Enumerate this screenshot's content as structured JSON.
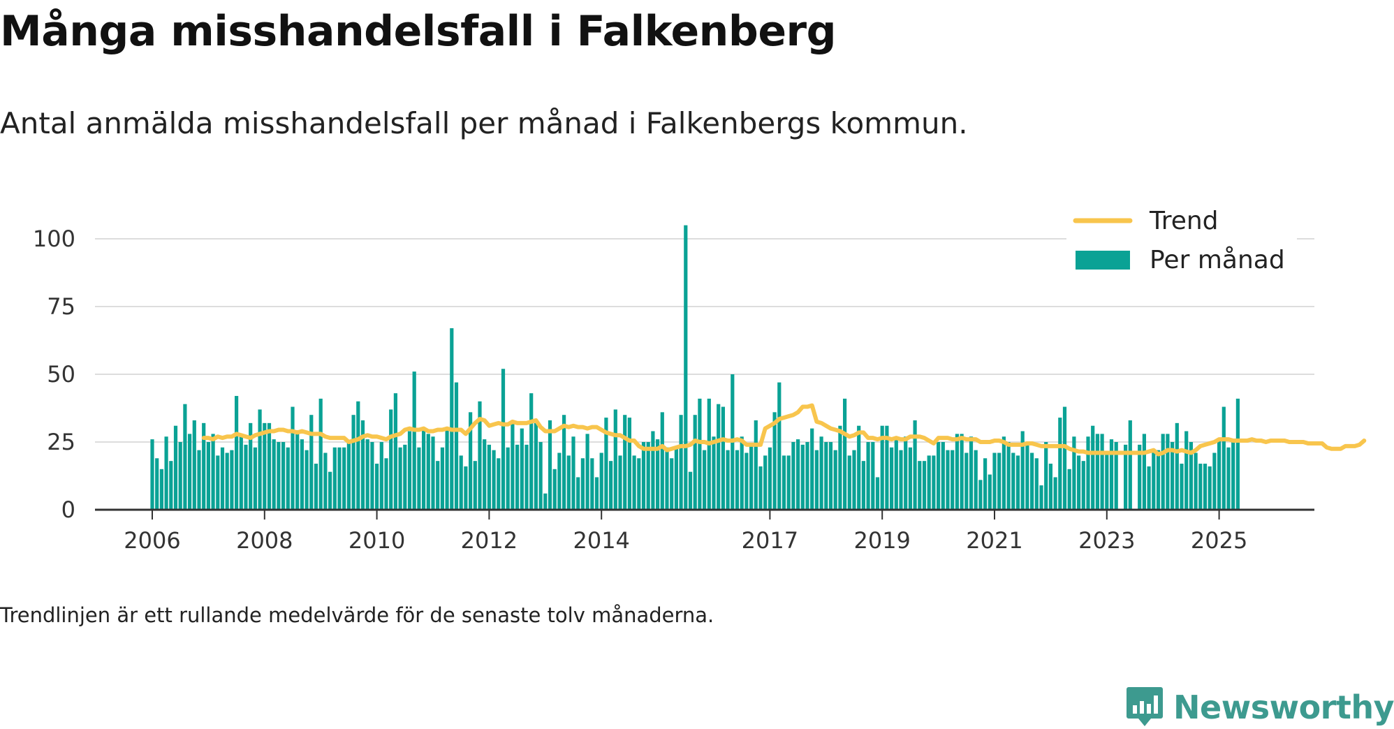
{
  "title": "Många misshandelsfall i Falkenberg",
  "subtitle": "Antal anmälda misshandelsfall per månad i Falkenbergs kommun.",
  "footnote": "Trendlinjen är ett rullande medelvärde för de senaste tolv månaderna.",
  "brand": "Newsworthy",
  "colors": {
    "bars": "#0aa295",
    "trend": "#f8c54d",
    "grid": "#dddddd",
    "axis": "#333333",
    "brand": "#3d9a8f"
  },
  "chart_data": {
    "type": "bar",
    "title": "Många misshandelsfall i Falkenberg",
    "subtitle": "Antal anmälda misshandelsfall per månad i Falkenbergs kommun.",
    "xlabel": "",
    "ylabel": "",
    "ylim": [
      0,
      110
    ],
    "y_ticks": [
      0,
      25,
      50,
      75,
      100
    ],
    "x_start": "2006-01",
    "x_ticks": [
      "2006",
      "2008",
      "2010",
      "2012",
      "2014",
      "2017",
      "2019",
      "2021",
      "2023",
      "2025"
    ],
    "grid": true,
    "legend_position": "top-right",
    "series": [
      {
        "name": "Per månad",
        "type": "bar",
        "values": [
          26,
          19,
          15,
          27,
          18,
          31,
          25,
          39,
          28,
          33,
          22,
          32,
          25,
          28,
          20,
          23,
          21,
          22,
          42,
          28,
          24,
          32,
          23,
          37,
          32,
          32,
          26,
          25,
          25,
          23,
          38,
          29,
          26,
          22,
          35,
          17,
          41,
          21,
          14,
          23,
          23,
          23,
          25,
          35,
          40,
          33,
          26,
          25,
          17,
          25,
          19,
          37,
          43,
          23,
          24,
          29,
          51,
          23,
          30,
          28,
          27,
          18,
          23,
          30,
          67,
          47,
          20,
          16,
          36,
          18,
          40,
          26,
          24,
          22,
          19,
          52,
          23,
          33,
          24,
          30,
          24,
          43,
          32,
          25,
          6,
          33,
          15,
          21,
          35,
          20,
          27,
          12,
          19,
          28,
          19,
          12,
          21,
          34,
          18,
          37,
          20,
          35,
          34,
          20,
          19,
          25,
          25,
          29,
          26,
          36,
          23,
          19,
          23,
          35,
          105,
          14,
          35,
          41,
          22,
          41,
          27,
          39,
          38,
          22,
          50,
          22,
          27,
          21,
          24,
          33,
          16,
          20,
          23,
          36,
          47,
          20,
          20,
          25,
          26,
          24,
          25,
          30,
          22,
          27,
          25,
          25,
          22,
          31,
          41,
          20,
          22,
          31,
          18,
          25,
          25,
          12,
          31,
          31,
          23,
          27,
          22,
          27,
          23,
          33,
          18,
          18,
          20,
          20,
          25,
          25,
          22,
          22,
          28,
          28,
          21,
          27,
          22,
          11,
          19,
          13,
          21,
          21,
          27,
          25,
          21,
          20,
          29,
          25,
          21,
          19,
          9,
          25,
          17,
          12,
          34,
          38,
          15,
          27,
          20,
          18,
          27,
          31,
          28,
          28,
          21,
          26,
          25,
          0,
          24,
          33,
          0,
          24,
          28,
          16,
          21,
          22,
          28,
          28,
          25,
          32,
          17,
          29,
          25,
          21,
          17,
          17,
          16,
          21,
          26,
          38,
          23,
          25,
          41
        ],
        "color": "#0aa295"
      },
      {
        "name": "Trend",
        "type": "line",
        "start_index": 11,
        "values": [
          26.5,
          26.5,
          26,
          27,
          26.5,
          27,
          27,
          28,
          27.5,
          27,
          26.5,
          27.5,
          28,
          28.5,
          29,
          29,
          29.5,
          29.5,
          29,
          29,
          28.5,
          29,
          28.5,
          28,
          28,
          28,
          27,
          26.5,
          26.5,
          26.5,
          26.5,
          25,
          25.5,
          26,
          27,
          27.5,
          27,
          27,
          26.5,
          26,
          27,
          27.5,
          28,
          29.5,
          30,
          29.5,
          29.5,
          30,
          29,
          29,
          29.5,
          29.5,
          30,
          29.5,
          29.5,
          29.5,
          28,
          30,
          32,
          33.5,
          33,
          31,
          31.5,
          32,
          31.5,
          31.5,
          32.5,
          32,
          32,
          32,
          32.5,
          33,
          30.5,
          29,
          29,
          29,
          30,
          31,
          30.5,
          31,
          30.5,
          30.5,
          30,
          30.5,
          30.5,
          29.5,
          28.5,
          28,
          27.5,
          27.5,
          26.5,
          25.5,
          25.5,
          23.5,
          22.5,
          22.5,
          22.5,
          22.5,
          23.5,
          22,
          22.5,
          23,
          23.5,
          23.5,
          24,
          25.5,
          25,
          25,
          24.5,
          25,
          25.5,
          26,
          25.5,
          25.5,
          26,
          25.5,
          24,
          24,
          24,
          24,
          30,
          31,
          32,
          33.5,
          34,
          34.5,
          35,
          36,
          38,
          38,
          38.5,
          32.5,
          32,
          31,
          30,
          29.5,
          29,
          28,
          27,
          27.5,
          28.5,
          28.5,
          26.5,
          26.5,
          26,
          26.5,
          26.5,
          26,
          26.5,
          26,
          26,
          27,
          27,
          27,
          26.5,
          25.5,
          24.5,
          26.5,
          26.5,
          26.5,
          26,
          26,
          26.5,
          26,
          26,
          26,
          25,
          25,
          25,
          25.5,
          25.5,
          25,
          24,
          24,
          24,
          24,
          24.5,
          24.5,
          24,
          23.5,
          23.5,
          23.5,
          23.5,
          23.5,
          23.5,
          22.5,
          22,
          21.5,
          21.5,
          21,
          21,
          21,
          21,
          21,
          21,
          21,
          21,
          21,
          21,
          21,
          21,
          21,
          21.5,
          22,
          20.5,
          21,
          22,
          22,
          21.5,
          22,
          21.5,
          21,
          22,
          23.5,
          24,
          24.5,
          25,
          26,
          26,
          26,
          25.5,
          25.5,
          25.5,
          25.5,
          26,
          25.5,
          25.5,
          25,
          25.5,
          25.5,
          25.5,
          25.5,
          25,
          25,
          25,
          25,
          24.5,
          24.5,
          24.5,
          24.5,
          23,
          22.5,
          22.5,
          22.5,
          23.5,
          23.5,
          23.5,
          24,
          25.5
        ],
        "color": "#f8c54d"
      }
    ]
  }
}
